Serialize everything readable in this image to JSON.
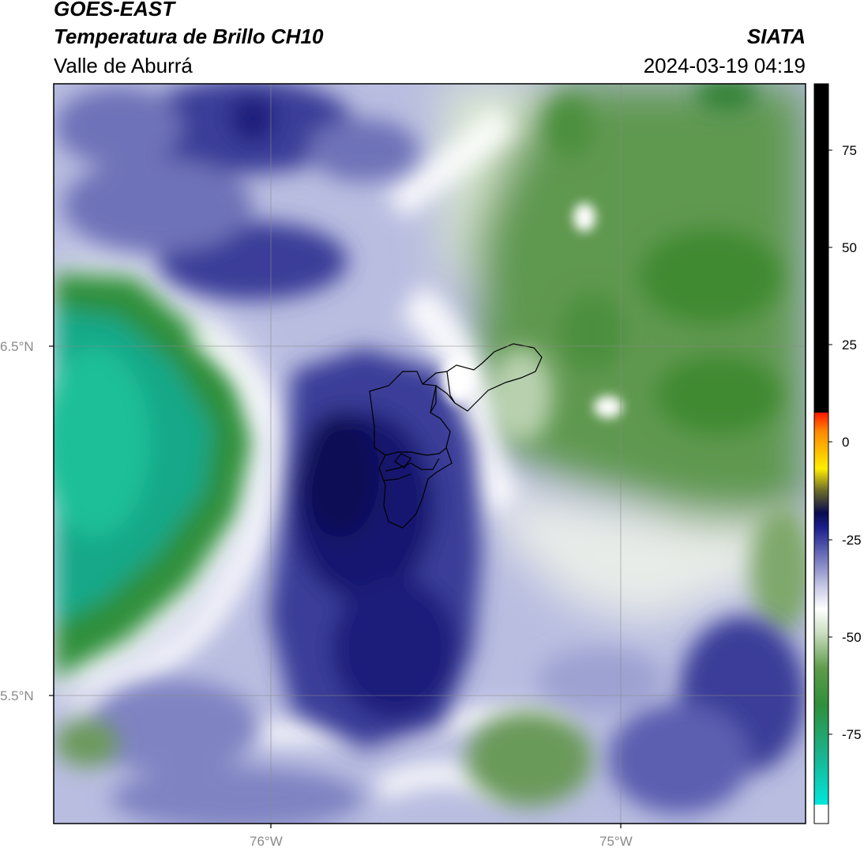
{
  "header": {
    "satellite": "GOES-EAST",
    "product": "Temperatura de Brillo CH10",
    "region": "Valle de Aburrá",
    "agency": "SIATA",
    "datetime": "2024-03-19 04:19"
  },
  "map": {
    "lat_labels": [
      "6.5°N",
      "5.5°N"
    ],
    "lon_labels": [
      "76°W",
      "75°W"
    ],
    "extent": {
      "lon_min": -76.62,
      "lon_max": -74.47,
      "lat_min": 5.14,
      "lat_max": 7.16
    },
    "grid_lats": [
      6.5,
      5.5
    ],
    "grid_lons": [
      -76.0,
      -75.0
    ]
  },
  "colorbar": {
    "ticks": [
      "75",
      "50",
      "25",
      "0",
      "-25",
      "-50",
      "-75"
    ],
    "range": [
      -95,
      92
    ],
    "colors": {
      "cold_cyan": "#00e0d0",
      "green": "#3f8f2f",
      "white": "#ffffff",
      "blue": "#1a1f8a",
      "navy": "#0a0a50",
      "yellow": "#ffee00",
      "orange": "#ff8800",
      "red": "#ff1a00",
      "black": "#000000"
    }
  }
}
